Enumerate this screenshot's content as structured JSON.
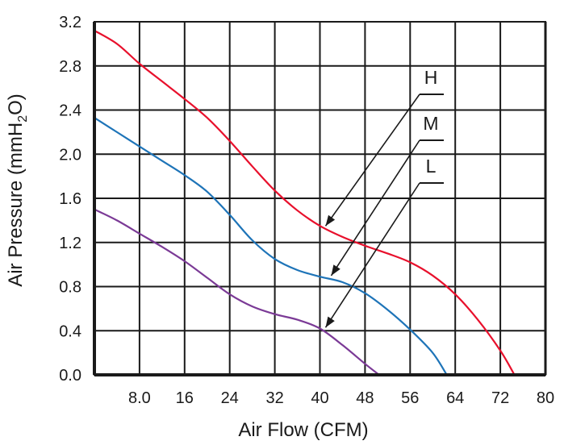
{
  "chart_data": {
    "type": "line",
    "xlabel": "Air Flow (CFM)",
    "ylabel_parts": {
      "pre": "Air Pressure (mmH",
      "sub": "2",
      "post": "O)"
    },
    "xlim": [
      0,
      80
    ],
    "ylim": [
      0,
      3.2
    ],
    "x_ticks": [
      8,
      16,
      24,
      32,
      40,
      48,
      56,
      64,
      72,
      80
    ],
    "x_tick_labels": [
      "8.0",
      "16",
      "24",
      "32",
      "40",
      "48",
      "56",
      "64",
      "72",
      "80"
    ],
    "y_ticks": [
      0,
      0.4,
      0.8,
      1.2,
      1.6,
      2.0,
      2.4,
      2.8,
      3.2
    ],
    "y_tick_labels": [
      "0.0",
      "0.4",
      "0.8",
      "1.2",
      "1.6",
      "2.0",
      "2.4",
      "2.8",
      "3.2"
    ],
    "grid": true,
    "series": [
      {
        "name": "H",
        "color": "#e8102c",
        "points": [
          [
            0,
            3.12
          ],
          [
            4,
            3.0
          ],
          [
            8,
            2.82
          ],
          [
            12,
            2.66
          ],
          [
            16,
            2.5
          ],
          [
            20,
            2.33
          ],
          [
            24,
            2.12
          ],
          [
            28,
            1.89
          ],
          [
            32,
            1.67
          ],
          [
            36,
            1.49
          ],
          [
            40,
            1.35
          ],
          [
            44,
            1.25
          ],
          [
            48,
            1.17
          ],
          [
            52,
            1.1
          ],
          [
            56,
            1.02
          ],
          [
            60,
            0.9
          ],
          [
            64,
            0.73
          ],
          [
            68,
            0.5
          ],
          [
            72,
            0.22
          ],
          [
            74.5,
            0.0
          ]
        ],
        "pointer_to": [
          41,
          1.32
        ]
      },
      {
        "name": "M",
        "color": "#1e74b8",
        "points": [
          [
            0,
            2.33
          ],
          [
            4,
            2.2
          ],
          [
            8,
            2.07
          ],
          [
            12,
            1.94
          ],
          [
            16,
            1.81
          ],
          [
            20,
            1.66
          ],
          [
            24,
            1.45
          ],
          [
            28,
            1.22
          ],
          [
            32,
            1.05
          ],
          [
            36,
            0.95
          ],
          [
            40,
            0.89
          ],
          [
            44,
            0.84
          ],
          [
            48,
            0.74
          ],
          [
            52,
            0.59
          ],
          [
            56,
            0.41
          ],
          [
            60,
            0.2
          ],
          [
            62.5,
            0.0
          ]
        ],
        "pointer_to": [
          42,
          0.87
        ]
      },
      {
        "name": "L",
        "color": "#7b3a96",
        "points": [
          [
            0,
            1.5
          ],
          [
            4,
            1.4
          ],
          [
            8,
            1.28
          ],
          [
            12,
            1.16
          ],
          [
            16,
            1.03
          ],
          [
            20,
            0.88
          ],
          [
            24,
            0.73
          ],
          [
            28,
            0.62
          ],
          [
            32,
            0.55
          ],
          [
            36,
            0.5
          ],
          [
            40,
            0.42
          ],
          [
            44,
            0.27
          ],
          [
            48,
            0.1
          ],
          [
            50.5,
            0.0
          ]
        ],
        "pointer_to": [
          41,
          0.4
        ]
      }
    ]
  }
}
